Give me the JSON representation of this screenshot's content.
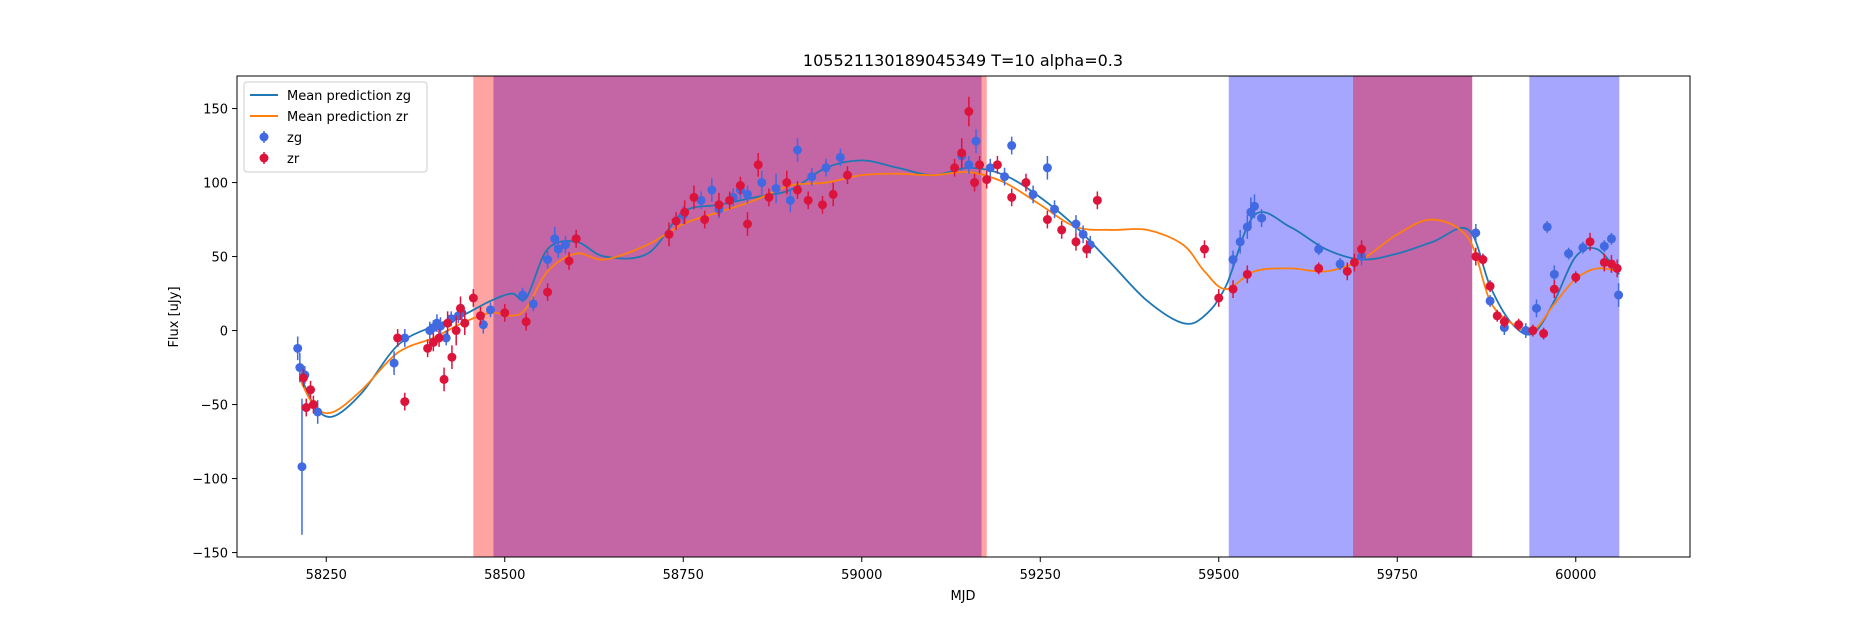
{
  "chart_data": {
    "type": "scatter",
    "title": "105521130189045349 T=10 alpha=0.3",
    "xlabel": "MJD",
    "ylabel": "Flux [uJy]",
    "xlim": [
      58125,
      60160
    ],
    "ylim": [
      -153,
      172
    ],
    "xticks": [
      58250,
      58500,
      58750,
      59000,
      59250,
      59500,
      59750,
      60000
    ],
    "yticks": [
      -150,
      -100,
      -50,
      0,
      50,
      100,
      150
    ],
    "legend_position": "upper left",
    "colors": {
      "zg_points": "#4169e1",
      "zr_points": "#dc143c",
      "zg_line": "#1f77b4",
      "zr_line": "#ff7f0e",
      "red_band": "#ff6666",
      "blue_band": "#6666ff",
      "overlap_band": "#c466a6"
    },
    "bands": [
      {
        "color": "red",
        "x0": 58456,
        "x1": 58484
      },
      {
        "color": "overlap",
        "x0": 58484,
        "x1": 59168
      },
      {
        "color": "red",
        "x0": 59168,
        "x1": 59175
      },
      {
        "color": "blue",
        "x0": 59514,
        "x1": 59688
      },
      {
        "color": "overlap",
        "x0": 59688,
        "x1": 59855
      },
      {
        "color": "blue",
        "x0": 59935,
        "x1": 60061
      }
    ],
    "series": [
      {
        "name": "Mean prediction zg",
        "kind": "line",
        "x": [
          58215,
          58235,
          58260,
          58300,
          58350,
          58400,
          58440,
          58480,
          58510,
          58530,
          58560,
          58600,
          58640,
          58700,
          58750,
          58800,
          58850,
          58900,
          58950,
          59000,
          59050,
          59100,
          59150,
          59200,
          59250,
          59300,
          59350,
          59400,
          59450,
          59480,
          59510,
          59550,
          59600,
          59650,
          59700,
          59750,
          59800,
          59850,
          59880,
          59910,
          59940,
          59970,
          60000,
          60030,
          60061
        ],
        "y": [
          -32,
          -52,
          -58,
          -42,
          -10,
          3,
          10,
          20,
          25,
          22,
          55,
          60,
          50,
          52,
          80,
          85,
          90,
          95,
          110,
          115,
          110,
          105,
          110,
          105,
          90,
          70,
          45,
          20,
          5,
          10,
          30,
          78,
          70,
          55,
          48,
          52,
          60,
          68,
          30,
          5,
          -2,
          20,
          50,
          55,
          38
        ]
      },
      {
        "name": "Mean prediction zr",
        "kind": "line",
        "x": [
          58215,
          58235,
          58260,
          58300,
          58350,
          58400,
          58440,
          58480,
          58510,
          58530,
          58560,
          58600,
          58640,
          58700,
          58750,
          58800,
          58850,
          58900,
          58950,
          59000,
          59050,
          59100,
          59150,
          59200,
          59250,
          59300,
          59350,
          59400,
          59450,
          59480,
          59510,
          59550,
          59600,
          59650,
          59700,
          59750,
          59800,
          59850,
          59880,
          59910,
          59940,
          59970,
          60000,
          60030,
          60061
        ],
        "y": [
          -35,
          -52,
          -55,
          -40,
          -15,
          -5,
          5,
          12,
          10,
          15,
          40,
          52,
          48,
          58,
          72,
          80,
          88,
          98,
          100,
          105,
          106,
          105,
          107,
          100,
          85,
          70,
          68,
          68,
          58,
          40,
          28,
          40,
          42,
          40,
          48,
          65,
          75,
          62,
          20,
          5,
          0,
          18,
          35,
          42,
          40
        ]
      },
      {
        "name": "zg",
        "kind": "points",
        "x": [
          58210,
          58213,
          58216,
          58220,
          58238,
          58345,
          58360,
          58395,
          58400,
          58405,
          58410,
          58418,
          58425,
          58435,
          58440,
          58470,
          58480,
          58525,
          58540,
          58560,
          58570,
          58575,
          58585,
          58600,
          58750,
          58775,
          58790,
          58800,
          58820,
          58830,
          58840,
          58860,
          58880,
          58900,
          58910,
          58930,
          58950,
          58970,
          59140,
          59150,
          59160,
          59180,
          59200,
          59210,
          59240,
          59260,
          59270,
          59300,
          59310,
          59320,
          59520,
          59530,
          59540,
          59545,
          59550,
          59560,
          59640,
          59670,
          59700,
          59860,
          59880,
          59900,
          59930,
          59945,
          59960,
          59970,
          59990,
          60010,
          60040,
          60050,
          60060
        ],
        "y": [
          -12,
          -25,
          -92,
          -30,
          -55,
          -22,
          -5,
          0,
          2,
          5,
          3,
          -5,
          8,
          10,
          12,
          4,
          14,
          24,
          18,
          48,
          62,
          55,
          58,
          62,
          78,
          88,
          95,
          82,
          90,
          95,
          92,
          100,
          96,
          88,
          122,
          104,
          110,
          117,
          118,
          112,
          128,
          110,
          104,
          125,
          92,
          110,
          82,
          72,
          65,
          58,
          48,
          60,
          70,
          80,
          84,
          76,
          55,
          45,
          50,
          66,
          20,
          2,
          0,
          15,
          70,
          38,
          52,
          56,
          57,
          62,
          24
        ],
        "err": [
          8,
          10,
          46,
          6,
          8,
          8,
          6,
          6,
          5,
          6,
          6,
          5,
          5,
          5,
          6,
          6,
          5,
          5,
          5,
          6,
          8,
          6,
          6,
          6,
          6,
          6,
          8,
          6,
          6,
          6,
          6,
          8,
          10,
          8,
          8,
          6,
          6,
          6,
          10,
          6,
          8,
          6,
          6,
          6,
          6,
          8,
          6,
          6,
          6,
          6,
          6,
          8,
          8,
          10,
          8,
          6,
          4,
          4,
          6,
          6,
          4,
          5,
          5,
          6,
          4,
          6,
          4,
          4,
          4,
          4,
          8
        ]
      },
      {
        "name": "zr",
        "kind": "points",
        "x": [
          58218,
          58222,
          58228,
          58232,
          58350,
          58360,
          58392,
          58400,
          58408,
          58415,
          58420,
          58426,
          58432,
          58438,
          58444,
          58456,
          58466,
          58500,
          58530,
          58560,
          58590,
          58600,
          58730,
          58740,
          58752,
          58765,
          58780,
          58800,
          58815,
          58830,
          58840,
          58855,
          58870,
          58895,
          58910,
          58925,
          58945,
          58960,
          58980,
          59130,
          59140,
          59150,
          59158,
          59165,
          59175,
          59190,
          59210,
          59230,
          59260,
          59280,
          59300,
          59315,
          59330,
          59480,
          59500,
          59520,
          59540,
          59640,
          59680,
          59690,
          59700,
          59860,
          59870,
          59880,
          59890,
          59900,
          59920,
          59940,
          59955,
          59970,
          60000,
          60020,
          60040,
          60050,
          60058
        ],
        "y": [
          -32,
          -52,
          -40,
          -50,
          -5,
          -48,
          -12,
          -8,
          -5,
          -33,
          5,
          -18,
          0,
          15,
          5,
          22,
          10,
          12,
          6,
          26,
          47,
          62,
          65,
          74,
          80,
          90,
          75,
          85,
          88,
          98,
          72,
          112,
          90,
          100,
          95,
          88,
          85,
          92,
          105,
          110,
          120,
          148,
          100,
          112,
          102,
          112,
          90,
          100,
          75,
          68,
          60,
          55,
          88,
          55,
          22,
          28,
          38,
          42,
          40,
          46,
          55,
          50,
          48,
          30,
          10,
          6,
          4,
          0,
          -2,
          28,
          36,
          60,
          46,
          45,
          42
        ],
        "err": [
          6,
          6,
          6,
          6,
          6,
          6,
          6,
          6,
          6,
          8,
          8,
          8,
          10,
          8,
          8,
          6,
          6,
          6,
          6,
          6,
          6,
          6,
          8,
          6,
          8,
          8,
          6,
          8,
          6,
          6,
          8,
          8,
          6,
          8,
          6,
          6,
          6,
          8,
          6,
          6,
          10,
          10,
          6,
          6,
          6,
          6,
          6,
          6,
          6,
          6,
          6,
          6,
          6,
          6,
          6,
          6,
          6,
          4,
          6,
          6,
          6,
          6,
          4,
          4,
          4,
          4,
          4,
          4,
          4,
          6,
          4,
          6,
          6,
          6,
          6
        ]
      }
    ]
  }
}
